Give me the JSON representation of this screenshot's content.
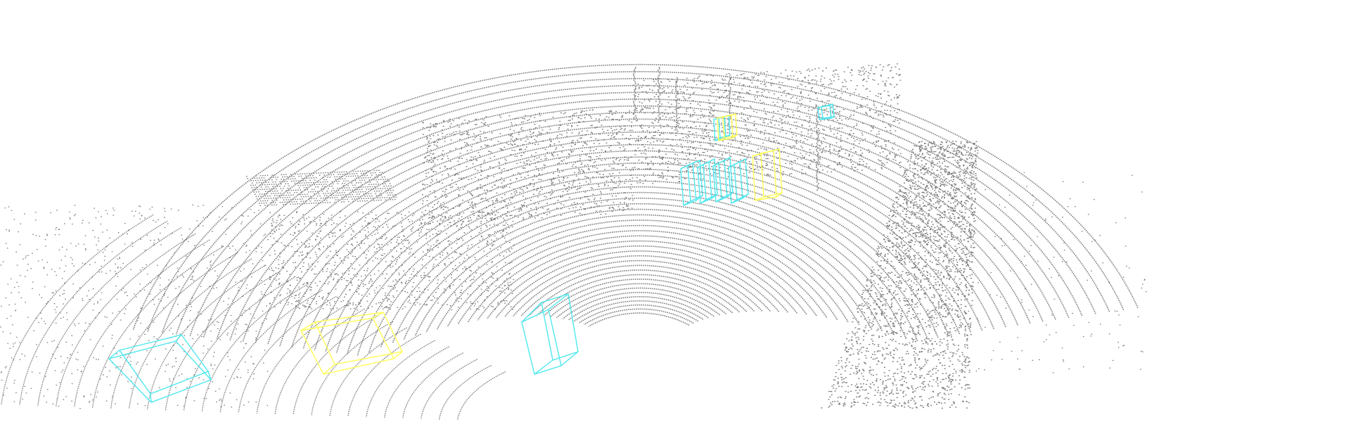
{
  "scene": {
    "background": "#ffffff",
    "point_color": "#7f7f7f",
    "box_color_cyan": "#4fe8ef",
    "box_color_yellow": "#ffff55",
    "boxes": [
      {
        "class": "cyan",
        "kind": "pedestrian-box"
      },
      {
        "class": "cyan",
        "kind": "pedestrian-box"
      },
      {
        "class": "cyan",
        "kind": "pedestrian-box"
      },
      {
        "class": "cyan",
        "kind": "pedestrian-box"
      },
      {
        "class": "cyan",
        "kind": "pedestrian-box"
      },
      {
        "class": "cyan",
        "kind": "pedestrian-box"
      },
      {
        "class": "cyan",
        "kind": "pedestrian-box"
      },
      {
        "class": "yellow",
        "kind": "cyclist-box"
      },
      {
        "class": "yellow",
        "kind": "cyclist-box"
      },
      {
        "class": "yellow",
        "kind": "cyclist-box"
      }
    ]
  }
}
